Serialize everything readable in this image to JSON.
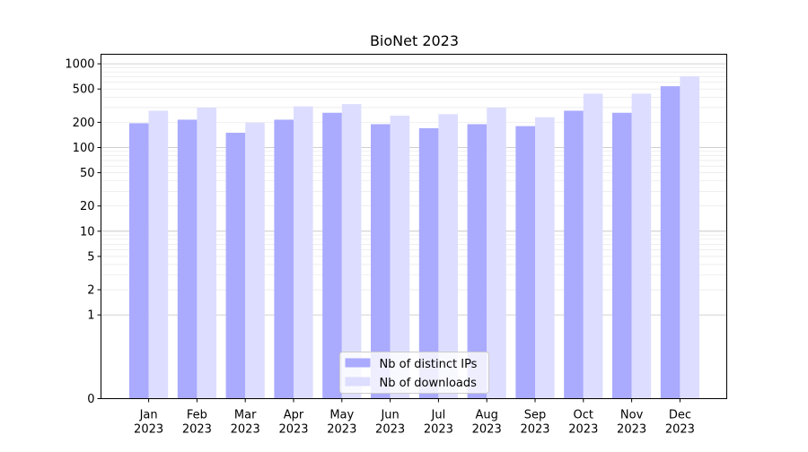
{
  "chart_data": {
    "type": "bar",
    "title": "BioNet 2023",
    "xlabel": "",
    "ylabel": "",
    "yscale": "symlog",
    "ylim": [
      0,
      1300
    ],
    "yticks": [
      0,
      1,
      2,
      5,
      10,
      20,
      50,
      100,
      200,
      500,
      1000
    ],
    "ytick_labels": [
      "0",
      "1",
      "2",
      "5",
      "10",
      "20",
      "50",
      "100",
      "200",
      "500",
      "1000"
    ],
    "grid": "horizontal, major and minor",
    "legend_position": "bottom-center",
    "categories": [
      "Jan\n2023",
      "Feb\n2023",
      "Mar\n2023",
      "Apr\n2023",
      "May\n2023",
      "Jun\n2023",
      "Jul\n2023",
      "Aug\n2023",
      "Sep\n2023",
      "Oct\n2023",
      "Nov\n2023",
      "Dec\n2023"
    ],
    "series": [
      {
        "name": "Nb of distinct IPs",
        "color": "#aaaaff",
        "values": [
          195,
          215,
          150,
          215,
          260,
          190,
          170,
          190,
          180,
          275,
          260,
          540
        ]
      },
      {
        "name": "Nb of downloads",
        "color": "#ddddff",
        "values": [
          275,
          300,
          198,
          310,
          330,
          240,
          250,
          300,
          230,
          440,
          440,
          710
        ]
      }
    ]
  }
}
